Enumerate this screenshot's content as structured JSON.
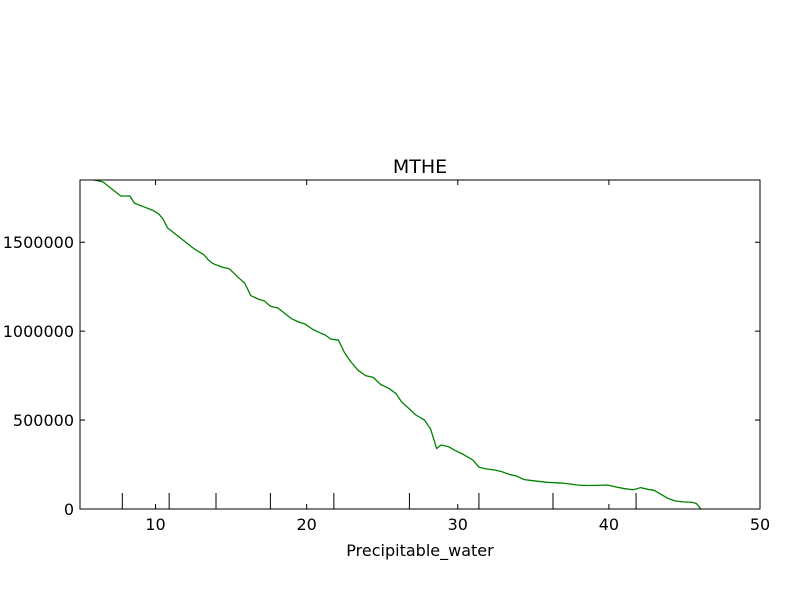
{
  "chart_data": {
    "type": "line",
    "title": "MTHE",
    "xlabel": "Precipitable_water",
    "ylabel": "",
    "xlim": [
      5,
      50
    ],
    "ylim": [
      0,
      1850000
    ],
    "xticks": [
      10,
      20,
      30,
      40,
      50
    ],
    "xtick_labels": [
      "10",
      "20",
      "30",
      "40",
      "50"
    ],
    "yticks": [
      0,
      500000,
      1000000,
      1500000
    ],
    "ytick_labels": [
      "0",
      "500000",
      "1000000",
      "1500000"
    ],
    "grid": false,
    "legend": "none",
    "series": [
      {
        "color": "#008000",
        "x": [
          5.9,
          6.5,
          7.1,
          7.7,
          8.3,
          8.6,
          9.2,
          9.8,
          10.2,
          10.5,
          10.8,
          11.4,
          12.0,
          12.6,
          13.2,
          13.5,
          13.8,
          14.4,
          14.9,
          15.5,
          15.9,
          16.3,
          16.8,
          17.2,
          17.6,
          18.1,
          18.4,
          19.0,
          19.5,
          19.9,
          20.4,
          20.9,
          21.2,
          21.6,
          22.1,
          22.5,
          22.9,
          23.4,
          23.9,
          24.4,
          24.9,
          25.4,
          25.9,
          26.3,
          26.7,
          27.2,
          27.8,
          28.2,
          28.6,
          28.9,
          29.4,
          29.8,
          30.3,
          30.6,
          31.0,
          31.4,
          31.9,
          32.4,
          32.9,
          33.4,
          33.9,
          34.4,
          34.9,
          35.4,
          35.9,
          36.4,
          37.0,
          37.5,
          37.9,
          38.6,
          39.2,
          39.9,
          40.4,
          41.0,
          41.6,
          42.1,
          42.6,
          43.0,
          43.4,
          43.9,
          44.4,
          44.9,
          45.5,
          45.8,
          46.1
        ],
        "y": [
          1850000,
          1840000,
          1800000,
          1760000,
          1760000,
          1720000,
          1700000,
          1680000,
          1660000,
          1630000,
          1580000,
          1540000,
          1500000,
          1460000,
          1430000,
          1400000,
          1380000,
          1360000,
          1350000,
          1300000,
          1270000,
          1200000,
          1180000,
          1170000,
          1140000,
          1130000,
          1110000,
          1070000,
          1050000,
          1040000,
          1010000,
          990000,
          980000,
          955000,
          950000,
          880000,
          830000,
          780000,
          750000,
          740000,
          700000,
          680000,
          650000,
          600000,
          570000,
          530000,
          500000,
          450000,
          340000,
          360000,
          350000,
          330000,
          310000,
          295000,
          275000,
          235000,
          225000,
          220000,
          210000,
          195000,
          185000,
          165000,
          160000,
          155000,
          150000,
          148000,
          145000,
          140000,
          135000,
          132000,
          133000,
          135000,
          125000,
          115000,
          108000,
          120000,
          110000,
          105000,
          85000,
          60000,
          45000,
          40000,
          38000,
          30000,
          0
        ]
      }
    ],
    "rug_x": [
      7.8,
      10.9,
      14.0,
      17.6,
      21.8,
      26.8,
      31.4,
      36.3,
      41.8
    ]
  }
}
